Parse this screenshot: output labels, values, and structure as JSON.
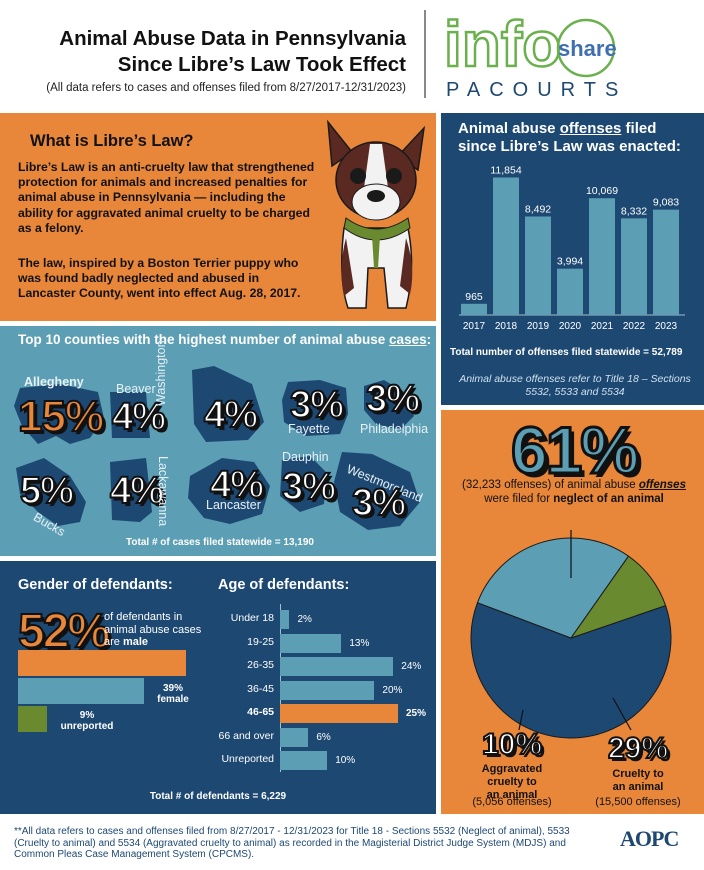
{
  "header": {
    "title_line1": "Animal Abuse Data in Pennsylvania",
    "title_line2": "Since Libre’s Law Took Effect",
    "subtitle": "(All data refers to cases and offenses filed from 8/27/2017-12/31/2023)"
  },
  "logo": {
    "part1": "info",
    "part2": "share",
    "part3": "PACOURTS"
  },
  "libre": {
    "title": "What is Libre’s Law?",
    "paragraph1": "Libre’s Law is an anti-cruelty law that strengthened protection for animals and increased penalties for animal abuse in Pennsylvania — including the ability for aggravated animal cruelty to be charged as a felony.",
    "paragraph2": "The law, inspired by a Boston Terrier puppy who was found badly neglected and abused in Lancaster County, went into effect Aug. 28, 2017."
  },
  "offenses": {
    "title_pre": "Animal abuse ",
    "title_underlined": "offenses",
    "title_post": " filed since Libre’s Law was enacted:",
    "total": "Total number of offenses filed statewide = 52,789",
    "note": "Animal abuse offenses refer to Title 18 – Sections 5532, 5533 and 5534"
  },
  "chart_data": {
    "type": "bar",
    "title": "Animal abuse offenses filed since Libre’s Law was enacted",
    "categories": [
      "2017",
      "2018",
      "2019",
      "2020",
      "2021",
      "2022",
      "2023"
    ],
    "values": [
      965,
      11854,
      8492,
      3994,
      10069,
      8332,
      9083
    ],
    "value_labels": [
      "965",
      "11,854",
      "8,492",
      "3,994",
      "10,069",
      "8,332",
      "9,083"
    ],
    "ylim": [
      0,
      12500
    ]
  },
  "counties": {
    "title_pre": "Top 10 counties with the highest number of animal abuse ",
    "title_underlined": "cases",
    "title_post": ":",
    "items": [
      {
        "name": "Allegheny",
        "pct": "15%"
      },
      {
        "name": "Beaver",
        "pct": "4%"
      },
      {
        "name": "Washington",
        "pct": "4%"
      },
      {
        "name": "Fayette",
        "pct": "3%"
      },
      {
        "name": "Philadelphia",
        "pct": "3%"
      },
      {
        "name": "Bucks",
        "pct": "5%"
      },
      {
        "name": "Lackawanna",
        "pct": "4%"
      },
      {
        "name": "Lancaster",
        "pct": "4%"
      },
      {
        "name": "Dauphin",
        "pct": "3%"
      },
      {
        "name": "Westmoreland",
        "pct": "3%"
      }
    ],
    "total": "Total # of cases filed statewide = 13,190"
  },
  "gender": {
    "title": "Gender of defendants:",
    "pct": "52%",
    "desc_pre": "of defendants in animal abuse cases are ",
    "desc_bold": "male",
    "male_value": 52,
    "female_value": 39,
    "unreported_value": 9,
    "female_label_pct": "39%",
    "female_label": "female",
    "unreported_label_pct": "9%",
    "unreported_label": "unreported",
    "colors": {
      "male": "#e8873a",
      "female": "#5c9eb4",
      "unreported": "#6a8a2f"
    }
  },
  "age": {
    "title": "Age of defendants:",
    "rows": [
      {
        "label": "Under 18",
        "value": 2,
        "text": "2%",
        "highlight": false
      },
      {
        "label": "19-25",
        "value": 13,
        "text": "13%",
        "highlight": false
      },
      {
        "label": "26-35",
        "value": 24,
        "text": "24%",
        "highlight": false
      },
      {
        "label": "36-45",
        "value": 20,
        "text": "20%",
        "highlight": false
      },
      {
        "label": "46-65",
        "value": 25,
        "text": "25%",
        "highlight": true
      },
      {
        "label": "66 and over",
        "value": 6,
        "text": "6%",
        "highlight": false
      },
      {
        "label": "Unreported",
        "value": 10,
        "text": "10%",
        "highlight": false
      }
    ],
    "total": "Total # of defendants = 6,229"
  },
  "pie": {
    "big_pct": "61%",
    "desc_pre": "(32,233 offenses) of animal abuse ",
    "desc_underlined": "offenses",
    "desc_mid": " were filed for ",
    "desc_bold": "neglect of an animal",
    "slices": [
      {
        "name": "Neglect of an animal",
        "value": 61,
        "color": "#1d4872"
      },
      {
        "name": "Cruelty to an animal",
        "value": 29,
        "color": "#5c9eb4"
      },
      {
        "name": "Aggravated cruelty to an animal",
        "value": 10,
        "color": "#6a8a2f"
      }
    ],
    "agg_pct": "10%",
    "agg_label1": "Aggravated",
    "agg_label2": "cruelty to",
    "agg_label3": "an animal",
    "agg_count": "(5,056 offenses)",
    "cruel_pct": "29%",
    "cruel_label1": "Cruelty to",
    "cruel_label2": "an animal",
    "cruel_count": "(15,500 offenses)"
  },
  "footer": {
    "text": "**All data refers to cases and offenses filed from 8/27/2017 - 12/31/2023 for Title 18 - Sections 5532 (Neglect of animal), 5533 (Cruelty to animal) and 5534 (Aggravated cruelty to animal) as recorded in the Magisterial District Judge System (MDJS) and Common Pleas Case Management System (CPCMS).",
    "brand": "AOPC"
  }
}
